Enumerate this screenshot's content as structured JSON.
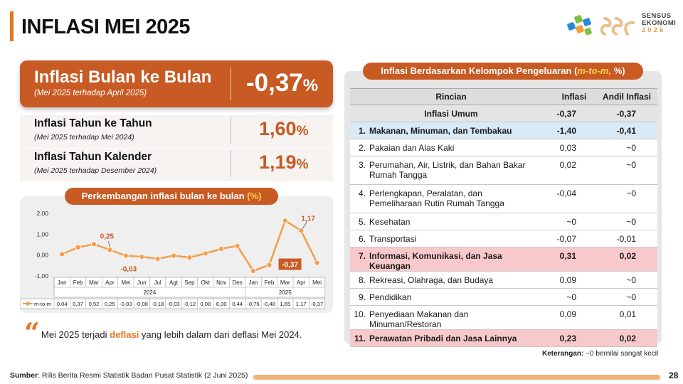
{
  "header": {
    "title": "INFLASI MEI 2025",
    "logo_line1": "SENSUS",
    "logo_line2": "EKONOMI",
    "logo_year": "2026"
  },
  "mom": {
    "title": "Inflasi Bulan ke Bulan",
    "sub": "(Mei 2025 terhadap April 2025)",
    "value": "-0,37",
    "unit": "%"
  },
  "yoy": {
    "title": "Inflasi Tahun ke Tahun",
    "sub": "(Mei 2025 terhadap Mei 2024)",
    "value": "1,60",
    "unit": "%"
  },
  "ytd": {
    "title": "Inflasi Tahun Kalender",
    "sub": "(Mei 2025 terhadap Desember 2024)",
    "value": "1,19",
    "unit": "%"
  },
  "chart_section": {
    "title": "Perkembangan inflasi bulan ke bulan ",
    "title_unit": "(%)"
  },
  "chart_data": {
    "type": "line",
    "series": [
      {
        "name": "m-to-m",
        "values": [
          0.04,
          0.37,
          0.52,
          0.25,
          -0.03,
          -0.08,
          -0.18,
          -0.03,
          -0.12,
          0.08,
          0.3,
          0.44,
          -0.76,
          -0.48,
          1.65,
          1.17,
          -0.37
        ],
        "labels": [
          "0,04",
          "0,37",
          "0,52",
          "0,25",
          "-0,03",
          "-0,08",
          "-0,18",
          "-0,03",
          "-0,12",
          "0,08",
          "0,30",
          "0,44",
          "-0,76",
          "-0,48",
          "1,65",
          "1,17",
          "-0,37"
        ]
      }
    ],
    "categories": [
      "Jan",
      "Feb",
      "Mar",
      "Apr",
      "Mei",
      "Jun",
      "Jul",
      "Agt",
      "Sep",
      "Okt",
      "Nov",
      "Des",
      "Jan",
      "Feb",
      "Mar",
      "Apr",
      "Mei"
    ],
    "years": [
      "2024",
      "2025"
    ],
    "ylim": [
      -1.0,
      2.0
    ],
    "yticks": [
      "2,00",
      "1,00",
      "0,00",
      "-1,00"
    ],
    "annotations": [
      {
        "index": 3,
        "text": "0,25"
      },
      {
        "index": 4,
        "text": "-0,03"
      },
      {
        "index": 15,
        "text": "1,17"
      },
      {
        "index": 16,
        "text": "-0,37"
      }
    ],
    "line_color": "#f0a050",
    "grid": false
  },
  "quote": {
    "before": "Mei 2025 terjadi ",
    "highlight": "deflasi",
    "after": " yang lebih dalam dari deflasi Mei 2024."
  },
  "table_section": {
    "title_a": "Inflasi Berdasarkan Kelompok Pengeluaran (",
    "title_b": "m-to-m,",
    "title_c": " %)",
    "headers": [
      "Rincian",
      "Inflasi",
      "Andil Inflasi"
    ],
    "rows": [
      {
        "no": "",
        "label": "Inflasi Umum",
        "inflasi": "-0,37",
        "andil": "-0,37",
        "style": "sum"
      },
      {
        "no": "1.",
        "label": "Makanan, Minuman, dan Tembakau",
        "inflasi": "-1,40",
        "andil": "-0,41",
        "style": "blue"
      },
      {
        "no": "2.",
        "label": "Pakaian dan Alas Kaki",
        "inflasi": "0,03",
        "andil": "~0",
        "style": ""
      },
      {
        "no": "3.",
        "label": "Perumahan, Air, Listrik, dan Bahan Bakar Rumah Tangga",
        "inflasi": "0,02",
        "andil": "~0",
        "style": "tall"
      },
      {
        "no": "4.",
        "label": "Perlengkapan, Peralatan, dan Pemeliharaan Rutin Rumah Tangga",
        "inflasi": "-0,04",
        "andil": "~0",
        "style": "tall"
      },
      {
        "no": "5.",
        "label": "Kesehatan",
        "inflasi": "~0",
        "andil": "~0",
        "style": ""
      },
      {
        "no": "6.",
        "label": "Transportasi",
        "inflasi": "-0,07",
        "andil": "-0,01",
        "style": ""
      },
      {
        "no": "7.",
        "label": "Informasi, Komunikasi, dan Jasa Keuangan",
        "inflasi": "0,31",
        "andil": "0,02",
        "style": "pink"
      },
      {
        "no": "8.",
        "label": "Rekreasi, Olahraga, dan Budaya",
        "inflasi": "0,09",
        "andil": "~0",
        "style": ""
      },
      {
        "no": "9.",
        "label": "Pendidikan",
        "inflasi": "~0",
        "andil": "~0",
        "style": ""
      },
      {
        "no": "10.",
        "label": "Penyediaan Makanan dan Minuman/Restoran",
        "inflasi": "0,09",
        "andil": "0,01",
        "style": ""
      },
      {
        "no": "11.",
        "label": "Perawatan Pribadi dan Jasa Lainnya",
        "inflasi": "0,23",
        "andil": "0,02",
        "style": "pink"
      }
    ],
    "note_bold": "Keterangan:",
    "note_text": " ~0 bernilai sangat kecil"
  },
  "footer": {
    "source_bold": "Sumber",
    "source_text": ": Rilis Berita Resmi Statistik Badan Pusat Statistik (2 Juni 2025)",
    "page": "28"
  },
  "colors": {
    "accent": "#c85a23",
    "orange": "#e8731c",
    "highlight": "#ffd34d"
  }
}
